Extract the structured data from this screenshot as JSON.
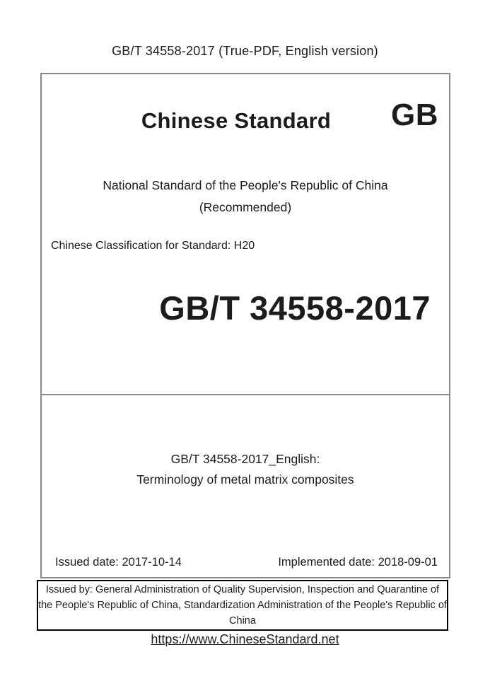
{
  "header": {
    "title": "GB/T 34558-2017 (True-PDF, English version)"
  },
  "cover": {
    "brand_title": "Chinese Standard",
    "gb_logo": "GB",
    "national_line": "National Standard of the People's Republic of China",
    "recommended": "(Recommended)",
    "classification": "Chinese Classification for Standard: H20",
    "standard_number": "GB/T 34558-2017"
  },
  "title_section": {
    "english_title_line1": "GB/T 34558-2017_English:",
    "english_title_line2": "Terminology of metal matrix composites",
    "issued_date": "Issued date: 2017-10-14",
    "implemented_date": "Implemented date: 2018-09-01"
  },
  "issuer": {
    "text": "Issued by: General Administration of Quality Supervision, Inspection and Quarantine of the People's Republic of China, Standardization Administration of the People's Republic of China"
  },
  "footer": {
    "link_text": "https://www.ChineseStandard.net",
    "link_href": "https://www.ChineseStandard.net"
  },
  "colors": {
    "background": "#ffffff",
    "text": "#1c1c1c",
    "main_box_border": "#8a8a8a",
    "issuer_box_border": "#000000"
  }
}
